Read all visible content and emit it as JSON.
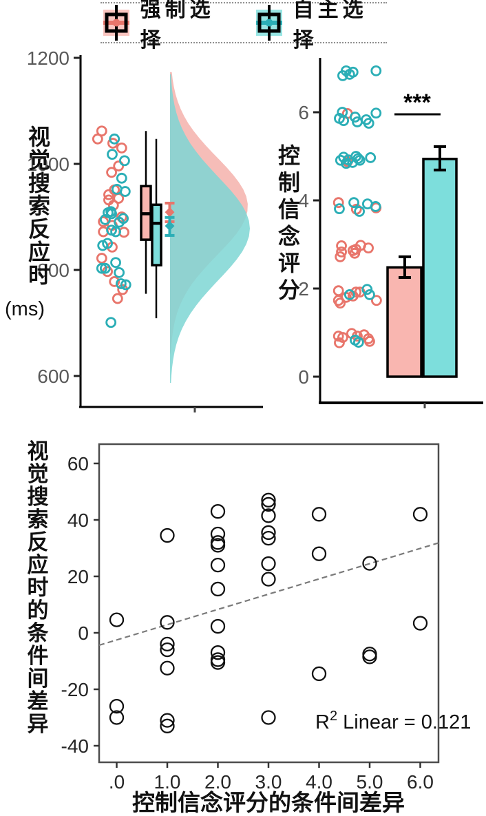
{
  "colors": {
    "pink": "#E8756B",
    "pink_fill": "#F9B6B0",
    "teal": "#2BAEB6",
    "teal_fill": "#7DDEDC",
    "violin_pink": "#F6BDB8",
    "violin_teal": "#7ED6D4",
    "axis_gray": "#595959",
    "axis_black": "#111111",
    "dash_gray": "#7a7a7a"
  },
  "legend": {
    "items": [
      {
        "label": "强制选择",
        "color": "#E8756B",
        "fill": "#F9B6B0"
      },
      {
        "label": "自主选择",
        "color": "#2BAEB6",
        "fill": "#7DDEDC"
      }
    ]
  },
  "chart_data": [
    {
      "id": "rt-raincloud",
      "type": "raincloud",
      "ylabel": "视觉搜索反应时",
      "ylabel_unit": "(ms)",
      "ylim": [
        600,
        1200
      ],
      "yticks": [
        1200,
        1000,
        800,
        600
      ],
      "series": [
        {
          "name": "强制选择",
          "points": [
            [
              0.17,
              1062
            ],
            [
              0.04,
              1047
            ],
            [
              0.52,
              1039
            ],
            [
              0.8,
              1030
            ],
            [
              0.7,
              996
            ],
            [
              0.48,
              984
            ],
            [
              0.57,
              951
            ],
            [
              0.39,
              942
            ],
            [
              0.7,
              935
            ],
            [
              0.39,
              932
            ],
            [
              0.54,
              922
            ],
            [
              0.8,
              900
            ],
            [
              0.22,
              891
            ],
            [
              0.5,
              884
            ],
            [
              0.22,
              872
            ],
            [
              0.87,
              871
            ],
            [
              0.5,
              843
            ],
            [
              0.17,
              822
            ],
            [
              0.35,
              797
            ],
            [
              0.57,
              778
            ],
            [
              0.83,
              763
            ],
            [
              0.67,
              746
            ]
          ],
          "box": {
            "whisker_low": 755,
            "q1": 857,
            "median": 906,
            "q3": 958,
            "whisker_high": 1062
          },
          "mean": 909,
          "ci": [
            891,
            926
          ],
          "violin": {
            "center": 920,
            "sd": 92
          }
        },
        {
          "name": "自主选择",
          "points": [
            [
              0.57,
              1047
            ],
            [
              0.5,
              1018
            ],
            [
              0.89,
              1006
            ],
            [
              0.8,
              973
            ],
            [
              0.65,
              952
            ],
            [
              0.91,
              948
            ],
            [
              0.46,
              910
            ],
            [
              0.37,
              908
            ],
            [
              0.48,
              906
            ],
            [
              0.28,
              895
            ],
            [
              0.85,
              897
            ],
            [
              0.72,
              890
            ],
            [
              0.48,
              875
            ],
            [
              0.61,
              872
            ],
            [
              0.35,
              850
            ],
            [
              0.2,
              846
            ],
            [
              0.61,
              814
            ],
            [
              0.17,
              803
            ],
            [
              0.28,
              803
            ],
            [
              0.72,
              795
            ],
            [
              0.78,
              774
            ],
            [
              0.93,
              772
            ],
            [
              0.46,
              701
            ]
          ],
          "box": {
            "whisker_low": 709,
            "q1": 809,
            "median": 888,
            "q3": 923,
            "whisker_high": 1047
          },
          "mean": 883,
          "ci": [
            865,
            899
          ],
          "violin": {
            "center": 878,
            "sd": 97
          }
        }
      ]
    },
    {
      "id": "belief-bars",
      "type": "bar_jitter",
      "ylabel": "控制信念评分",
      "ylim": [
        0,
        7.3
      ],
      "yticks": [
        6,
        4,
        2,
        0
      ],
      "significance": "***",
      "series": [
        {
          "name": "强制选择",
          "mean": 2.48,
          "ci": [
            2.25,
            2.72
          ],
          "points": [
            [
              0.27,
              5.97
            ],
            [
              0.27,
              4.88
            ],
            [
              0.06,
              3.95
            ],
            [
              0.48,
              3.8
            ],
            [
              0.94,
              3.83
            ],
            [
              0.13,
              2.97
            ],
            [
              0.13,
              2.83
            ],
            [
              0.1,
              2.72
            ],
            [
              0.4,
              2.86
            ],
            [
              0.44,
              2.8
            ],
            [
              0.47,
              2.89
            ],
            [
              0.58,
              2.98
            ],
            [
              0.76,
              2.92
            ],
            [
              0.06,
              1.95
            ],
            [
              0.06,
              1.73
            ],
            [
              0.1,
              1.67
            ],
            [
              0.24,
              1.8
            ],
            [
              0.4,
              1.83
            ],
            [
              0.47,
              1.92
            ],
            [
              0.56,
              1.92
            ],
            [
              0.95,
              1.73
            ],
            [
              0.06,
              0.92
            ],
            [
              0.08,
              0.77
            ],
            [
              0.16,
              0.89
            ],
            [
              0.37,
              0.98
            ],
            [
              0.5,
              0.92
            ],
            [
              0.66,
              0.95
            ],
            [
              0.76,
              0.86
            ],
            [
              0.79,
              0.8
            ]
          ]
        },
        {
          "name": "自主选择",
          "mean": 4.94,
          "ci": [
            4.69,
            5.22
          ],
          "points": [
            [
              0.16,
              6.83
            ],
            [
              0.24,
              6.94
            ],
            [
              0.32,
              6.86
            ],
            [
              0.4,
              6.91
            ],
            [
              0.94,
              6.94
            ],
            [
              0.08,
              5.86
            ],
            [
              0.15,
              6.0
            ],
            [
              0.18,
              5.81
            ],
            [
              0.45,
              5.89
            ],
            [
              0.5,
              5.78
            ],
            [
              0.71,
              5.83
            ],
            [
              0.77,
              5.75
            ],
            [
              0.94,
              5.98
            ],
            [
              0.11,
              4.91
            ],
            [
              0.18,
              4.98
            ],
            [
              0.24,
              4.84
            ],
            [
              0.29,
              4.92
            ],
            [
              0.39,
              4.86
            ],
            [
              0.47,
              5.0
            ],
            [
              0.52,
              4.95
            ],
            [
              0.56,
              4.91
            ],
            [
              0.81,
              4.97
            ],
            [
              0.08,
              3.81
            ],
            [
              0.42,
              3.95
            ],
            [
              0.55,
              3.75
            ],
            [
              0.74,
              3.92
            ],
            [
              0.93,
              3.86
            ],
            [
              0.32,
              1.86
            ],
            [
              0.73,
              1.98
            ],
            [
              0.79,
              1.86
            ],
            [
              0.45,
              0.83
            ],
            [
              0.53,
              0.78
            ]
          ]
        }
      ]
    },
    {
      "id": "difference-scatter",
      "type": "scatter",
      "xlabel": "控制信念评分的条件间差异",
      "ylabel": "视觉搜索反应时的条件间差异",
      "xlim": [
        -0.35,
        6.36
      ],
      "ylim": [
        -46,
        67
      ],
      "xticks": [
        ".0",
        "1.0",
        "2.0",
        "3.0",
        "4.0",
        "5.0",
        "6.0"
      ],
      "xtick_values": [
        0,
        1,
        2,
        3,
        4,
        5,
        6
      ],
      "yticks": [
        60,
        40,
        20,
        0,
        -20,
        -40
      ],
      "points": [
        [
          0,
          4.6
        ],
        [
          0,
          -26
        ],
        [
          0,
          -30
        ],
        [
          1,
          34.5
        ],
        [
          1,
          3.7
        ],
        [
          1,
          -4
        ],
        [
          1,
          -6
        ],
        [
          1,
          -12.5
        ],
        [
          1,
          -31
        ],
        [
          1,
          -33
        ],
        [
          2,
          43
        ],
        [
          2,
          35
        ],
        [
          2,
          32
        ],
        [
          2,
          31
        ],
        [
          2,
          24
        ],
        [
          2,
          15.5
        ],
        [
          2,
          2.3
        ],
        [
          2,
          -7
        ],
        [
          2,
          -9.5
        ],
        [
          2,
          -10.5
        ],
        [
          3,
          47
        ],
        [
          3,
          45.5
        ],
        [
          3,
          41.5
        ],
        [
          3,
          35.5
        ],
        [
          3,
          33.5
        ],
        [
          3,
          24.5
        ],
        [
          3,
          19
        ],
        [
          3,
          -30
        ],
        [
          4,
          42
        ],
        [
          4,
          28
        ],
        [
          4,
          -14.5
        ],
        [
          5,
          24.6
        ],
        [
          5,
          -7.5
        ],
        [
          5,
          -8.5
        ],
        [
          6,
          42
        ],
        [
          6,
          3.4
        ]
      ],
      "regression": {
        "slope": 5.4,
        "intercept": -2.5,
        "r_squared": 0.121
      },
      "annotation": {
        "base": "R",
        "sup": "2",
        "rest": " Linear = 0.121",
        "label": "R2 Linear = 0.121"
      }
    }
  ]
}
